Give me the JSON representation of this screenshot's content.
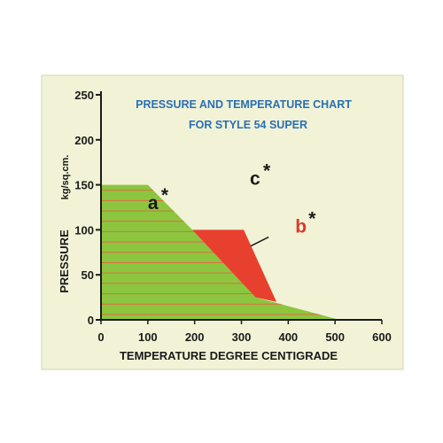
{
  "chart_data": {
    "type": "area",
    "title_lines": [
      "PRESSURE AND TEMPERATURE CHART",
      "FOR STYLE 54 SUPER"
    ],
    "xlabel": "TEMPERATURE DEGREE CENTIGRADE",
    "ylabel": "PRESSURE",
    "ylabel_unit": "kg/sq.cm.",
    "xlim": [
      0,
      600
    ],
    "ylim": [
      0,
      250
    ],
    "x_ticks": [
      0,
      100,
      200,
      300,
      400,
      500,
      600
    ],
    "y_ticks": [
      0,
      50,
      100,
      150,
      200,
      250
    ],
    "regions": [
      {
        "name": "a",
        "mark": "*",
        "color": "#8cc63f",
        "hatched": true,
        "hatch_color": "#e06a40",
        "points": [
          [
            0,
            150
          ],
          [
            100,
            150
          ],
          [
            195,
            100
          ],
          [
            330,
            25
          ],
          [
            510,
            0
          ],
          [
            0,
            0
          ]
        ],
        "label_pos": [
          100,
          123
        ]
      },
      {
        "name": "b",
        "mark": "*",
        "color": "#e8402e",
        "hatched": false,
        "points": [
          [
            195,
            100
          ],
          [
            305,
            100
          ],
          [
            375,
            20
          ],
          [
            330,
            25
          ]
        ],
        "label_pos": [
          415,
          97
        ],
        "leader": [
          [
            320,
            82
          ],
          [
            358,
            92
          ]
        ]
      },
      {
        "name": "c",
        "mark": "*",
        "color": "none",
        "hatched": false,
        "points": [],
        "label_pos": [
          318,
          150
        ]
      }
    ]
  }
}
